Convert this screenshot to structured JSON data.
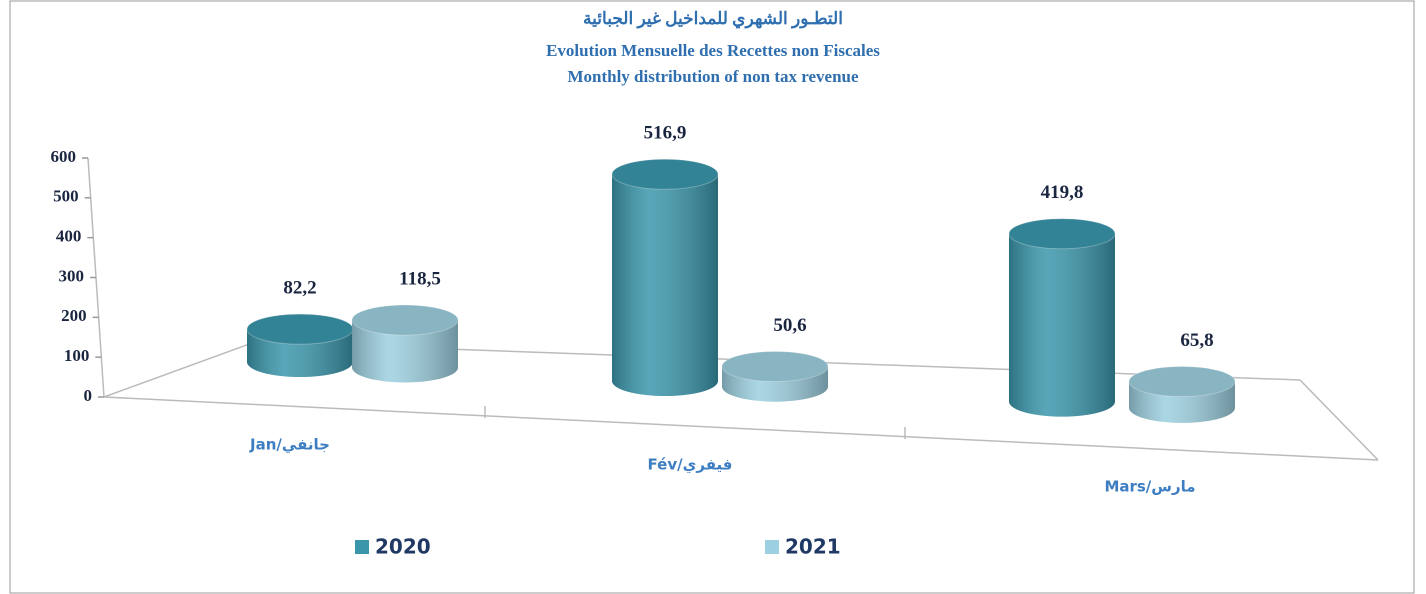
{
  "chart_data": {
    "type": "bar",
    "title": [
      "التطـور الشهري للمداخيل غير الجبائية",
      "Evolution Mensuelle des Recettes non Fiscales",
      "Monthly distribution of non tax revenue"
    ],
    "categories": [
      "Jan/جانفي",
      "Fév/فيفري",
      "Mars/مارس"
    ],
    "series": [
      {
        "name": "2020",
        "color": "#3a96ab",
        "values": [
          82.2,
          516.9,
          419.8
        ],
        "value_labels": [
          "82,2",
          "516,9",
          "419,8"
        ]
      },
      {
        "name": "2021",
        "color": "#9ccfdf",
        "values": [
          118.5,
          50.6,
          65.8
        ],
        "value_labels": [
          "118,5",
          "50,6",
          "65,8"
        ]
      }
    ],
    "ylim": [
      0,
      600
    ],
    "yticks": [
      0,
      100,
      200,
      300,
      400,
      500,
      600
    ],
    "legend": "bottom"
  }
}
